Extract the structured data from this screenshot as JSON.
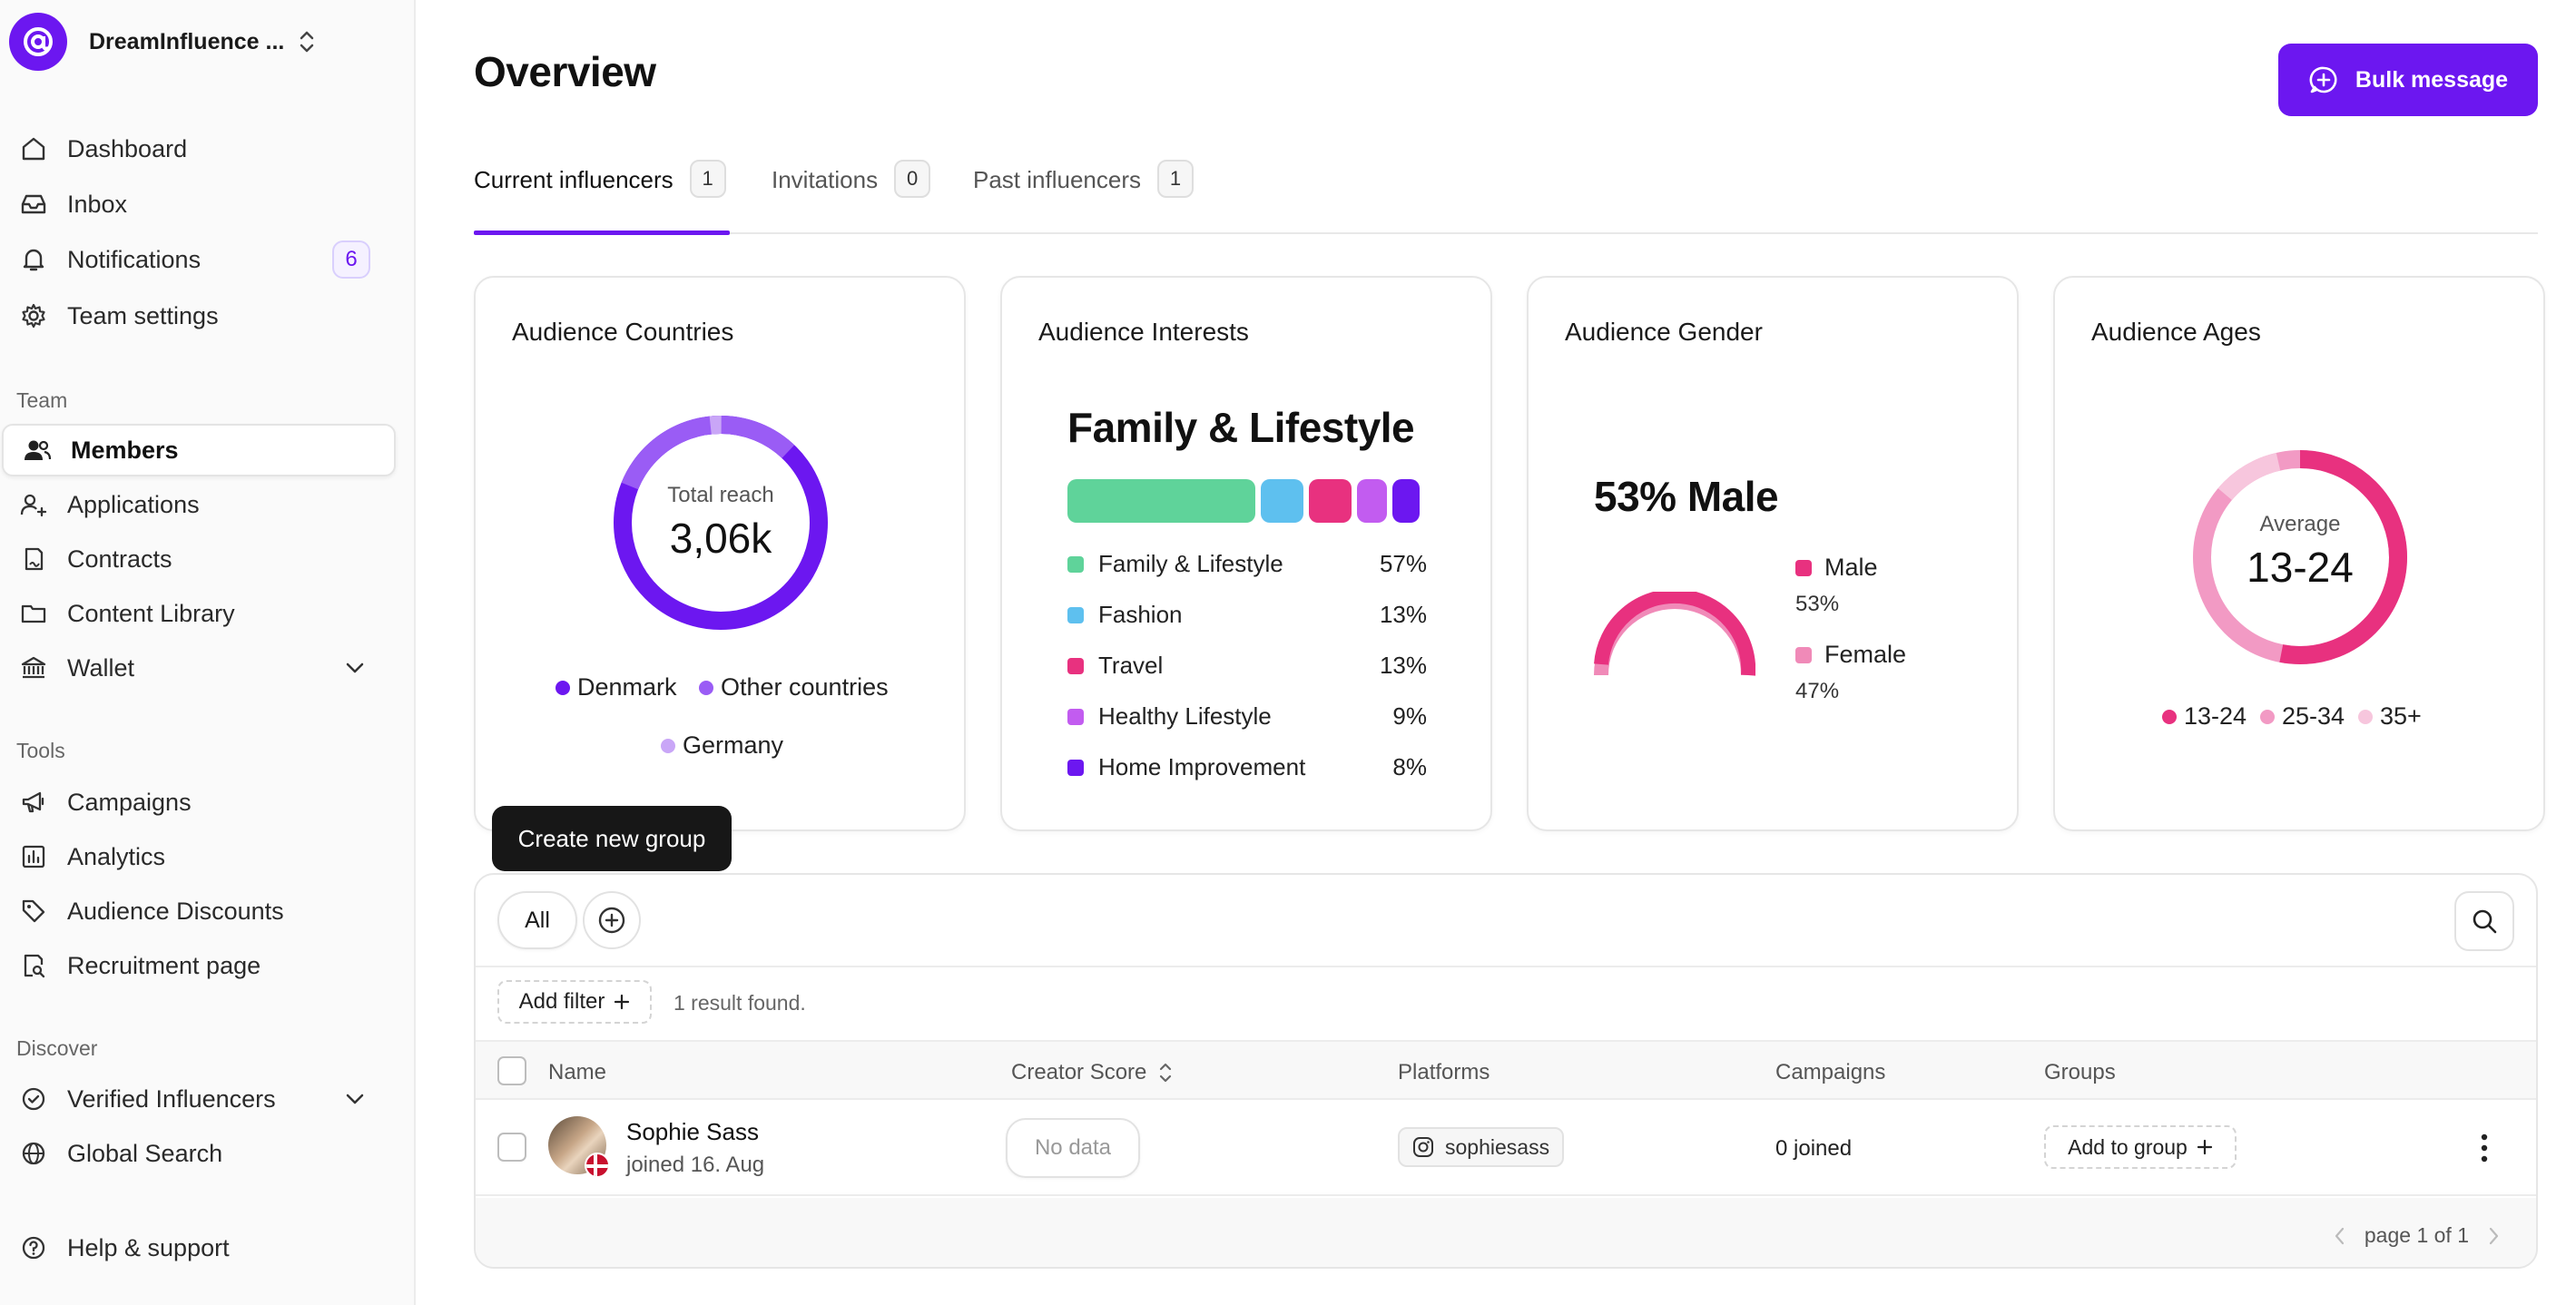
{
  "sidebar": {
    "team_name": "DreamInfluence ...",
    "main_nav": [
      {
        "label": "Dashboard",
        "icon": "home-icon"
      },
      {
        "label": "Inbox",
        "icon": "inbox-icon"
      },
      {
        "label": "Notifications",
        "icon": "bell-icon",
        "badge": "6"
      },
      {
        "label": "Team settings",
        "icon": "gear-icon"
      }
    ],
    "team_label": "Team",
    "team_nav": [
      {
        "label": "Members",
        "icon": "users-icon",
        "active": true
      },
      {
        "label": "Applications",
        "icon": "user-add-icon"
      },
      {
        "label": "Contracts",
        "icon": "contract-icon"
      },
      {
        "label": "Content Library",
        "icon": "folder-icon"
      },
      {
        "label": "Wallet",
        "icon": "bank-icon"
      }
    ],
    "tools_label": "Tools",
    "tools_nav": [
      {
        "label": "Campaigns",
        "icon": "megaphone-icon"
      },
      {
        "label": "Analytics",
        "icon": "bar-chart-icon"
      },
      {
        "label": "Audience Discounts",
        "icon": "tag-icon"
      },
      {
        "label": "Recruitment page",
        "icon": "page-search-icon"
      }
    ],
    "discover_label": "Discover",
    "discover_nav": [
      {
        "label": "Verified Influencers",
        "icon": "verified-icon"
      },
      {
        "label": "Global Search",
        "icon": "globe-icon"
      }
    ],
    "help_label": "Help & support"
  },
  "header": {
    "title": "Overview",
    "bulk_message_label": "Bulk message"
  },
  "tabs": [
    {
      "label": "Current influencers",
      "count": "1",
      "active": true
    },
    {
      "label": "Invitations",
      "count": "0"
    },
    {
      "label": "Past influencers",
      "count": "1"
    }
  ],
  "cards": {
    "countries": {
      "title": "Audience Countries",
      "center_label": "Total reach",
      "center_value": "3,06k",
      "legend": [
        {
          "label": "Denmark",
          "color": "#6c17f0"
        },
        {
          "label": "Other countries",
          "color": "#9a5cf5"
        },
        {
          "label": "Germany",
          "color": "#c9a6f7"
        }
      ]
    },
    "interests": {
      "title": "Audience Interests",
      "headline": "Family & Lifestyle",
      "items": [
        {
          "label": "Family & Lifestyle",
          "pct": "57%",
          "color": "#5fd39a"
        },
        {
          "label": "Fashion",
          "pct": "13%",
          "color": "#5ec0ef"
        },
        {
          "label": "Travel",
          "pct": "13%",
          "color": "#e8317f"
        },
        {
          "label": "Healthy Lifestyle",
          "pct": "9%",
          "color": "#c25cf0"
        },
        {
          "label": "Home Improvement",
          "pct": "8%",
          "color": "#6c17f0"
        }
      ]
    },
    "gender": {
      "title": "Audience Gender",
      "headline": "53% Male",
      "items": [
        {
          "label": "Male",
          "pct": "53%",
          "color": "#e8317f"
        },
        {
          "label": "Female",
          "pct": "47%",
          "color": "#f08ab8"
        }
      ]
    },
    "ages": {
      "title": "Audience Ages",
      "center_label": "Average",
      "center_value": "13-24",
      "legend": [
        {
          "label": "13-24",
          "color": "#e8317f"
        },
        {
          "label": "25-34",
          "color": "#f29ac4"
        },
        {
          "label": "35+",
          "color": "#f7c6dd"
        }
      ]
    }
  },
  "members": {
    "tooltip": "Create new group",
    "group_all_label": "All",
    "add_filter_label": "Add filter",
    "result_text": "1 result found.",
    "columns": [
      "Name",
      "Creator Score",
      "Platforms",
      "Campaigns",
      "Groups"
    ],
    "rows": [
      {
        "name": "Sophie Sass",
        "joined": "joined 16. Aug",
        "creator_score": "No data",
        "platform_handle": "sophiesass",
        "campaigns": "0 joined",
        "groups_action": "Add to group"
      }
    ],
    "pagination": "page 1 of 1"
  },
  "colors": {
    "accent": "#6c17f0"
  }
}
